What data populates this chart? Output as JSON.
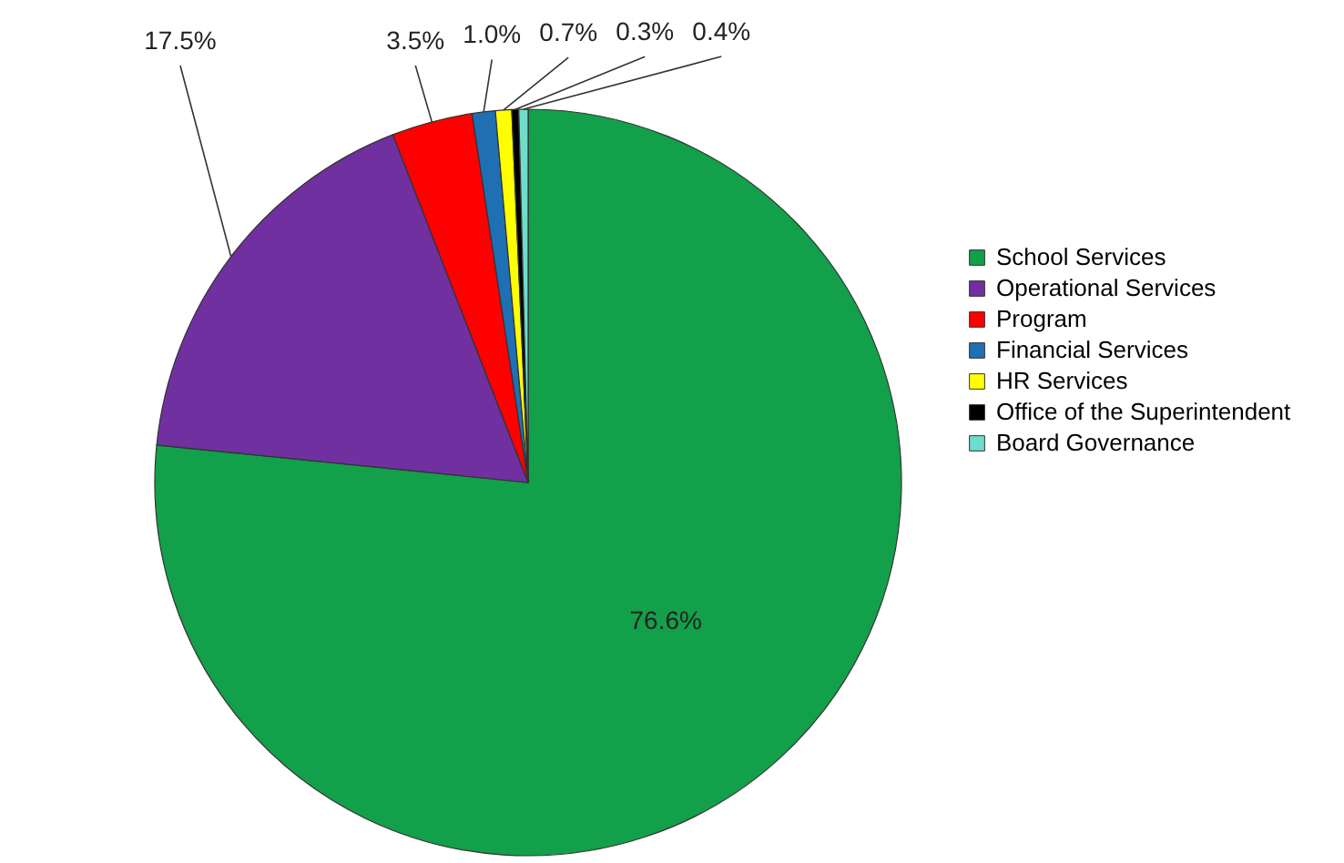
{
  "chart_data": {
    "type": "pie",
    "categories": [
      "School Services",
      "Operational Services",
      "Program",
      "Financial Services",
      "HR Services",
      "Office of the Superintendent",
      "Board Governance"
    ],
    "values": [
      76.6,
      17.5,
      3.5,
      1.0,
      0.7,
      0.3,
      0.4
    ],
    "value_labels": [
      "76.6%",
      "17.5%",
      "3.5%",
      "1.0%",
      "0.7%",
      "0.3%",
      "0.4%"
    ],
    "colors": [
      "#12a04a",
      "#7030a0",
      "#ff0000",
      "#1f6fb5",
      "#ffff00",
      "#000000",
      "#70dccb"
    ],
    "legend": "right"
  }
}
